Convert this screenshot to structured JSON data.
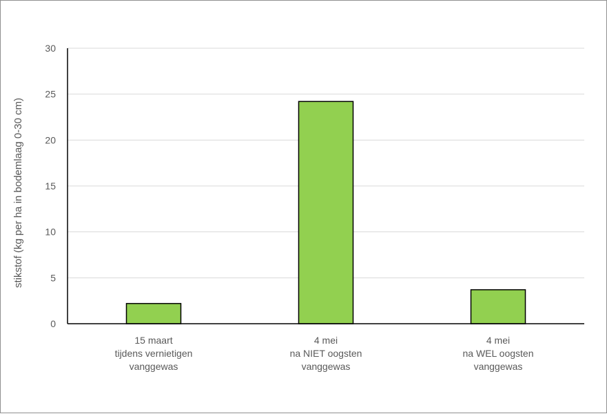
{
  "chart_data": {
    "type": "bar",
    "title": "",
    "xlabel": "",
    "ylabel": "stikstof (kg per ha in bodemlaag 0-30 cm)",
    "categories": [
      [
        "15 maart",
        "tijdens vernietigen",
        "vanggewas"
      ],
      [
        "4 mei",
        "na NIET oogsten",
        "vanggewas"
      ],
      [
        "4 mei",
        "na WEL oogsten",
        "vanggewas"
      ]
    ],
    "values": [
      2.2,
      24.2,
      3.7
    ],
    "ylim": [
      0,
      30
    ],
    "yticks": [
      0,
      5,
      10,
      15,
      20,
      25,
      30
    ],
    "grid": true,
    "legend": "none",
    "colors": {
      "bar": "#92d050",
      "bar_outline": "#000000",
      "grid": "#d9d9d9",
      "axis": "#000000",
      "text": "#595959"
    }
  }
}
